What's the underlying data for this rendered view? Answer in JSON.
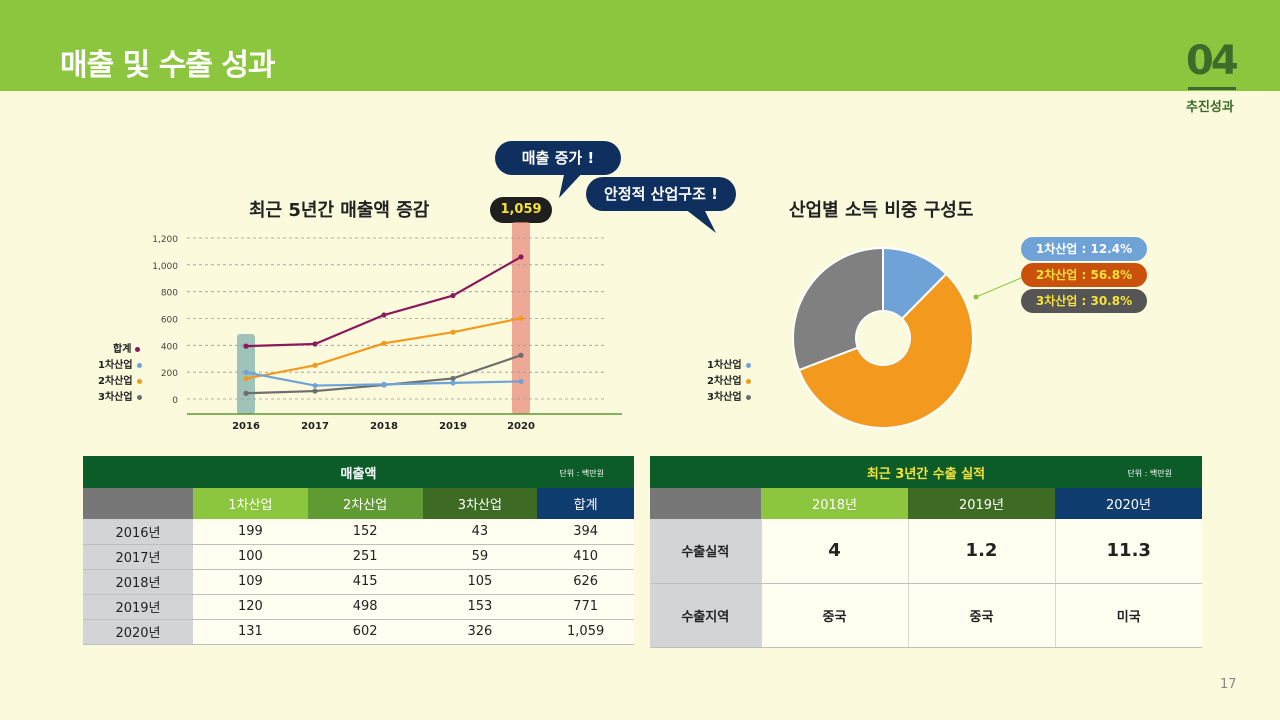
{
  "page": {
    "title": "매출 및 수출 성과",
    "section_number": "04",
    "section_label": "추진성과",
    "page_number": "17"
  },
  "colors": {
    "header_green": "#8cc63f",
    "dark_green": "#0c5c2a",
    "navy": "#0f2f5e",
    "series_total": "#8b1a5c",
    "series_1": "#6fa3d8",
    "series_2": "#f39a1e",
    "series_3": "#6e6e6e"
  },
  "bubbles": {
    "sales_increase": "매출 증가 !",
    "stable_structure": "안정적 산업구조 !"
  },
  "callout": "1,059",
  "chart_data": [
    {
      "type": "line",
      "title": "최근 5년간 매출액 증감",
      "x": [
        "2016",
        "2017",
        "2018",
        "2019",
        "2020"
      ],
      "ylim": [
        0,
        1200
      ],
      "yticks": [
        "0",
        "200",
        "400",
        "600",
        "800",
        "1,000",
        "1,200"
      ],
      "highlight": [
        "2016",
        "2020"
      ],
      "grid": true,
      "legend": "left",
      "series": [
        {
          "name": "합계",
          "values": [
            394,
            410,
            626,
            771,
            1059
          ],
          "color": "#8b1a5c"
        },
        {
          "name": "1차산업",
          "values": [
            199,
            100,
            109,
            120,
            131
          ],
          "color": "#6fa3d8"
        },
        {
          "name": "2차산업",
          "values": [
            152,
            251,
            415,
            498,
            602
          ],
          "color": "#f39a1e"
        },
        {
          "name": "3차산업",
          "values": [
            43,
            59,
            105,
            153,
            326
          ],
          "color": "#6e6e6e"
        }
      ]
    },
    {
      "type": "pie",
      "title": "산업별 소득 비중 구성도",
      "legend": "left",
      "slices": [
        {
          "name": "1차산업",
          "value": 12.4,
          "label": "1차산업 : 12.4%",
          "color": "#6fa3d8"
        },
        {
          "name": "2차산업",
          "value": 56.8,
          "label": "2차산업 : 56.8%",
          "color": "#f39a1e"
        },
        {
          "name": "3차산업",
          "value": 30.8,
          "label": "3차산업 : 30.8%",
          "color": "#808080"
        }
      ]
    }
  ],
  "sales_table": {
    "title": "매출액",
    "unit": "단위 : 백만원",
    "headers": [
      "",
      "1차산업",
      "2차산업",
      "3차산업",
      "합계"
    ],
    "rows": [
      [
        "2016년",
        "199",
        "152",
        "43",
        "394"
      ],
      [
        "2017년",
        "100",
        "251",
        "59",
        "410"
      ],
      [
        "2018년",
        "109",
        "415",
        "105",
        "626"
      ],
      [
        "2019년",
        "120",
        "498",
        "153",
        "771"
      ],
      [
        "2020년",
        "131",
        "602",
        "326",
        "1,059"
      ]
    ]
  },
  "export_table": {
    "title": "최근 3년간 수출 실적",
    "unit": "단위 : 백만원",
    "headers": [
      "",
      "2018년",
      "2019년",
      "2020년"
    ],
    "rows": [
      [
        "수출실적",
        "4",
        "1.2",
        "11.3"
      ],
      [
        "수출지역",
        "중국",
        "중국",
        "미국"
      ]
    ]
  }
}
